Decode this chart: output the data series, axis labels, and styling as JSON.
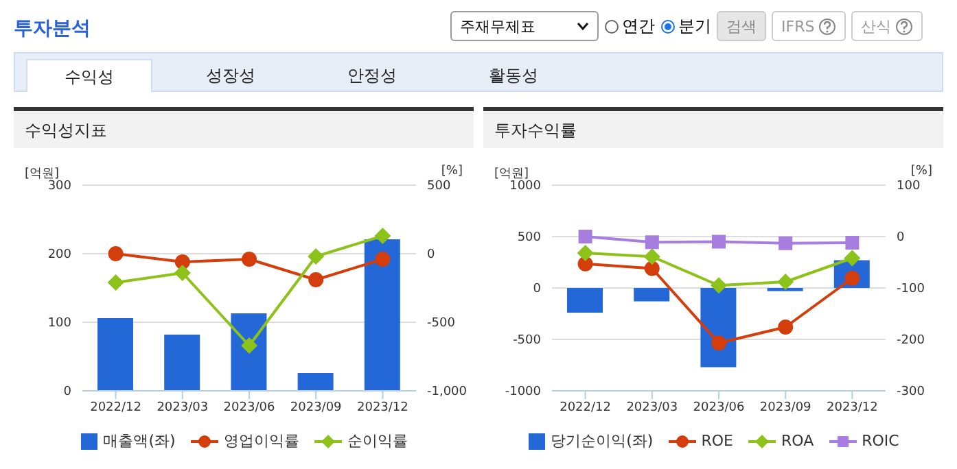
{
  "chart_data": [
    {
      "type": "bar",
      "title": "수익성지표",
      "ylabel": "[억원]",
      "y2label": "[%]",
      "annotations": [
        "투자분석",
        "주재무제표",
        "연간",
        "분기",
        "검색",
        "IFRS",
        "산식",
        "수익성",
        "성장성",
        "안정성",
        "활동성"
      ],
      "categories": [
        "2022/12",
        "2023/03",
        "2023/06",
        "2023/09",
        "2023/12"
      ],
      "series": [
        {
          "name": "매출액(좌)",
          "color": "#2468d8",
          "values": [
            106,
            82,
            113,
            26,
            221
          ]
        },
        {
          "name": "영업이익률",
          "type": "line",
          "axis": "y2",
          "marker": "circle",
          "color": "#d43d0c",
          "values": [
            0,
            -60,
            -40,
            -190,
            -40
          ]
        },
        {
          "name": "순이익률",
          "type": "line",
          "axis": "y2",
          "marker": "diamond",
          "color": "#8cc21a",
          "values": [
            -210,
            -140,
            -670,
            -20,
            130
          ]
        }
      ],
      "ylim": [
        0,
        300
      ],
      "yticks": [
        0,
        100,
        200,
        300
      ],
      "y2lim": [
        -1000,
        500
      ],
      "y2ticks": [
        {
          "value": -1000,
          "label": "-1,000"
        },
        -500,
        0,
        500
      ],
      "grid": "y",
      "legend": "bottom"
    },
    {
      "type": "bar",
      "title": "투자수익률",
      "ylabel": "[억원]",
      "y2label": "[%]",
      "categories": [
        "2022/12",
        "2023/03",
        "2023/06",
        "2023/09",
        "2023/12"
      ],
      "series": [
        {
          "name": "당기순이익(좌)",
          "color": "#2468d8",
          "values": [
            -240,
            -130,
            -770,
            -30,
            270
          ]
        },
        {
          "name": "ROE",
          "type": "line",
          "axis": "y2",
          "marker": "circle",
          "color": "#d43d0c",
          "values": [
            -53,
            -62,
            -207,
            -176,
            -81
          ]
        },
        {
          "name": "ROA",
          "type": "line",
          "axis": "y2",
          "marker": "diamond",
          "color": "#8cc21a",
          "values": [
            -32,
            -39,
            -95,
            -88,
            -42
          ]
        },
        {
          "name": "ROIC",
          "type": "line",
          "axis": "y2",
          "marker": "square",
          "color": "#a77ee0",
          "values": [
            0,
            -11,
            -10,
            -13,
            -12
          ]
        }
      ],
      "ylim": [
        -1000,
        1000
      ],
      "yticks": [
        -1000,
        -500,
        0,
        500,
        1000
      ],
      "y2lim": [
        -300,
        100
      ],
      "y2ticks": [
        -300,
        -200,
        -100,
        0,
        100
      ],
      "grid": "y",
      "legend": "bottom"
    }
  ]
}
